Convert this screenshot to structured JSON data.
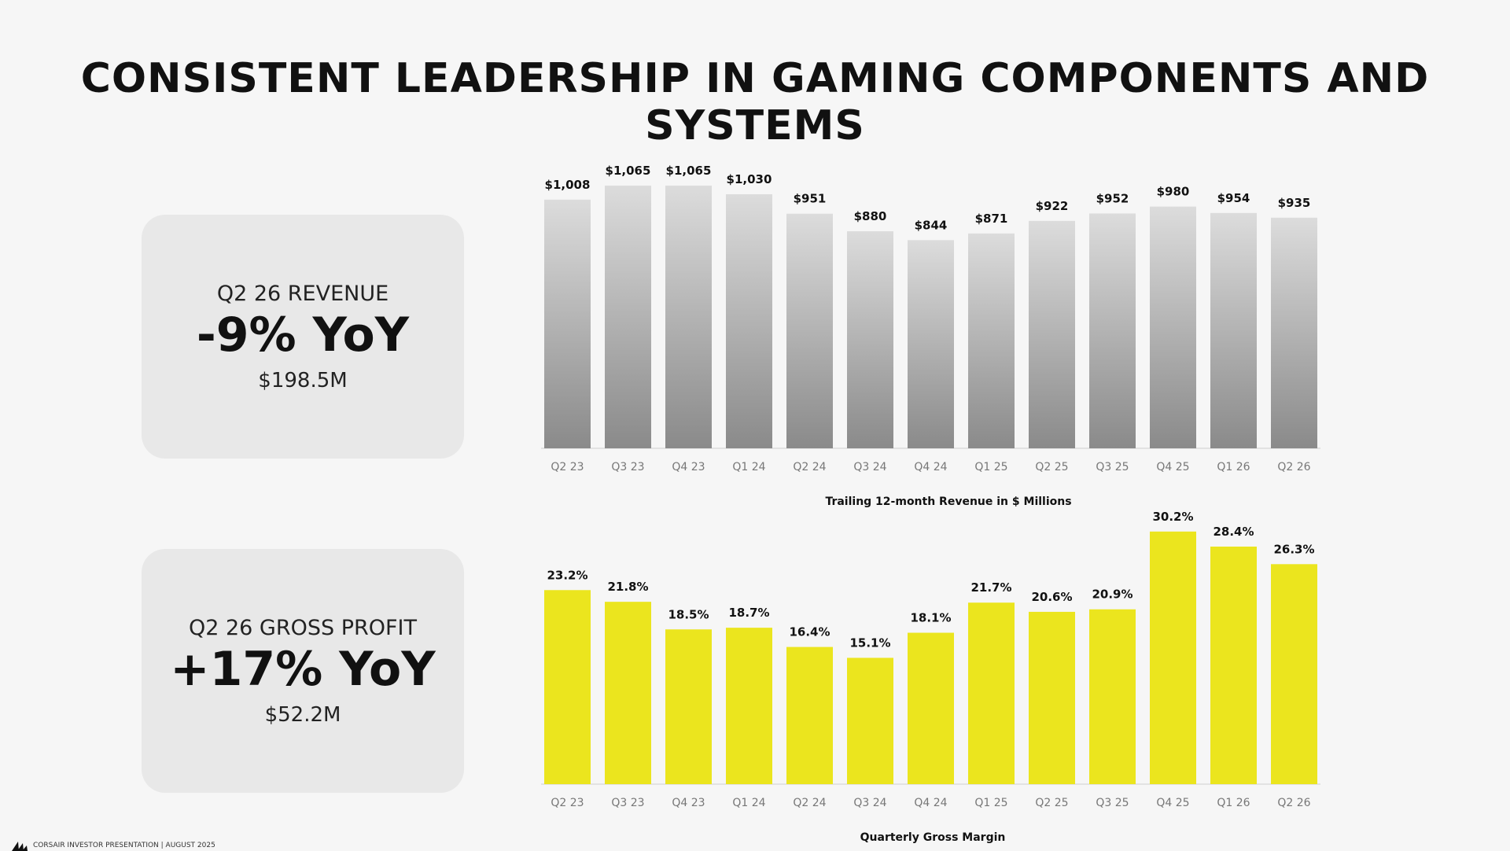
{
  "title": "CONSISTENT LEADERSHIP IN GAMING COMPONENTS AND SYSTEMS",
  "kpis": {
    "revenue": {
      "label": "Q2 26 REVENUE",
      "change": "-9% YoY",
      "value": "$198.5M"
    },
    "gross_profit": {
      "label": "Q2 26 GROSS PROFIT",
      "change": "+17% YoY",
      "value": "$52.2M"
    }
  },
  "footer": {
    "text": "CORSAIR INVESTOR PRESENTATION | AUGUST 2025",
    "logo_icon": "corsair-sails-icon"
  },
  "colors": {
    "revenue_bar_top": "#dcdcdc",
    "revenue_bar_bottom": "#8a8a8a",
    "margin_bar": "#ebe51e"
  },
  "chart_data": [
    {
      "type": "bar",
      "categories": [
        "Q2 23",
        "Q3 23",
        "Q4 23",
        "Q1 24",
        "Q2 24",
        "Q3 24",
        "Q4 24",
        "Q1 25",
        "Q2 25",
        "Q3 25",
        "Q4 25",
        "Q1 26",
        "Q2 26"
      ],
      "values": [
        1008,
        1065,
        1065,
        1030,
        951,
        880,
        844,
        871,
        922,
        952,
        980,
        954,
        935
      ],
      "data_labels": [
        "$1,008",
        "$1,065",
        "$1,065",
        "$1,030",
        "$951",
        "$880",
        "$844",
        "$871",
        "$922",
        "$952",
        "$980",
        "$954",
        "$935"
      ],
      "xlabel": "Trailing 12-month Revenue in $ Millions",
      "ylim": [
        0,
        1100
      ]
    },
    {
      "type": "bar",
      "categories": [
        "Q2 23",
        "Q3 23",
        "Q4 23",
        "Q1 24",
        "Q2 24",
        "Q3 24",
        "Q4 24",
        "Q1 25",
        "Q2 25",
        "Q3 25",
        "Q4 25",
        "Q1 26",
        "Q2 26"
      ],
      "values": [
        23.2,
        21.8,
        18.5,
        18.7,
        16.4,
        15.1,
        18.1,
        21.7,
        20.6,
        20.9,
        30.2,
        28.4,
        26.3
      ],
      "data_labels": [
        "23.2%",
        "21.8%",
        "18.5%",
        "18.7%",
        "16.4%",
        "15.1%",
        "18.1%",
        "21.7%",
        "20.6%",
        "20.9%",
        "30.2%",
        "28.4%",
        "26.3%"
      ],
      "xlabel": "Quarterly Gross Margin",
      "ylim": [
        0,
        31.5
      ]
    }
  ]
}
